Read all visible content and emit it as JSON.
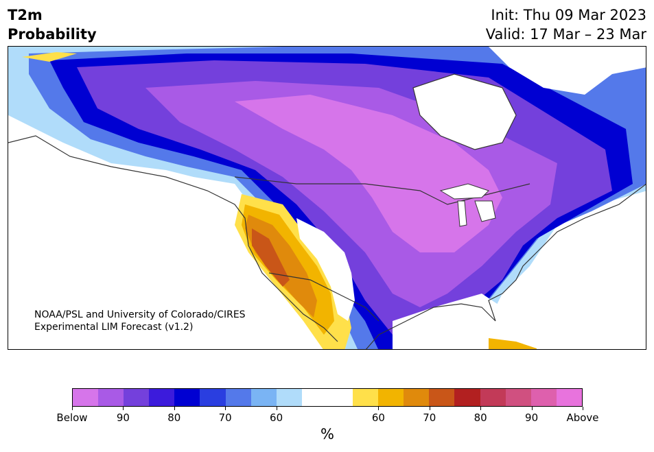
{
  "header": {
    "title_line1": "T2m",
    "title_line2": "Probability",
    "init": "Init: Thu 09 Mar 2023",
    "valid": "Valid: 17 Mar – 23 Mar"
  },
  "map": {
    "credit_line1": "NOAA/PSL and University of Colorado/CIRES",
    "credit_line2": "Experimental LIM Forecast (v1.2)"
  },
  "colorbar": {
    "colors": [
      "#d675ea",
      "#a95ae6",
      "#7440dc",
      "#3c1bdc",
      "#0000d2",
      "#2a3ee0",
      "#5479ea",
      "#7ab4f4",
      "#b0dcfa",
      "#ffffff",
      "#ffffff",
      "#ffe04a",
      "#f2b400",
      "#e08a0c",
      "#c95618",
      "#b22020",
      "#c23a58",
      "#d05080",
      "#de60ad",
      "#e873dd"
    ],
    "tick_labels": [
      "Below",
      "90",
      "80",
      "70",
      "60",
      "60",
      "70",
      "80",
      "90",
      "Above"
    ],
    "unit_label": "%"
  }
}
